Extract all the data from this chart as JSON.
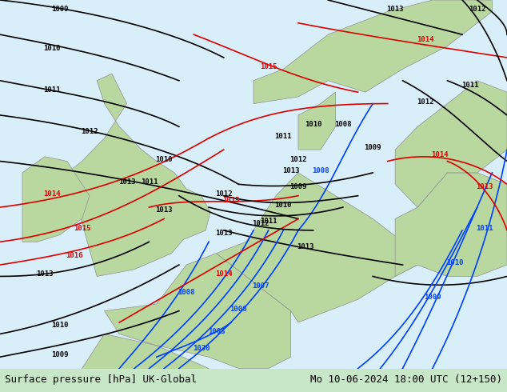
{
  "title_left": "Surface pressure [hPa] UK-Global",
  "title_right": "Mo 10-06-2024 18:00 UTC (12+150)",
  "bg_color": "#c8e6c8",
  "land_color": "#a8d8a8",
  "fig_width": 6.34,
  "fig_height": 4.9,
  "dpi": 100,
  "bottom_bar_color": "#d0f0d0",
  "footer_fontsize": 9
}
